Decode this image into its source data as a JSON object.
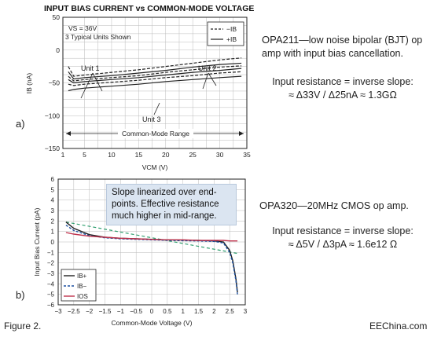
{
  "figure_label": "Figure 2.",
  "watermark": "EEChina.com",
  "right_notes": {
    "top": {
      "part": "OPA211",
      "desc_a": "—low noise bipolar (BJT) op",
      "desc_b": "amp with input bias cancellation.",
      "formula_a": "Input resistance = inverse slope:",
      "formula_b": "≈ Δ33V / Δ25nA ≈ 1.3GΩ"
    },
    "bottom": {
      "part": "OPA320",
      "desc": "—20MHz CMOS op amp.",
      "formula_a": "Input resistance = inverse slope:",
      "formula_b": "≈ Δ5V / Δ3pA ≈ 1.6e12 Ω"
    }
  },
  "callout": {
    "line1": "Slope linearized over end-",
    "line2": "points. Effective resistance",
    "line3": "much higher in mid-range."
  },
  "panel_labels": {
    "a": "a)",
    "b": "b)"
  },
  "colors": {
    "ib_plus": "#222222",
    "ib_minus": "#1a4fa0",
    "ios": "#c0334d",
    "slope_line": "#2e9e6e",
    "callout_bg": "#dbe5f1"
  },
  "chart_data": [
    {
      "type": "line",
      "title": "INPUT BIAS CURRENT vs COMMON-MODE VOLTAGE",
      "xlabel": "VCM (V)",
      "ylabel": "IB (nA)",
      "xlim": [
        1,
        35
      ],
      "ylim": [
        -150,
        50
      ],
      "x_ticks": [
        1,
        5,
        10,
        15,
        20,
        25,
        30,
        35
      ],
      "y_ticks": [
        50,
        0,
        -50,
        -100,
        -150
      ],
      "y_tick_labels": [
        "50",
        "0",
        "−50",
        "−100",
        "−150"
      ],
      "grid": true,
      "legend": {
        "position": "top-right",
        "entries": [
          "−IB",
          "+IB"
        ]
      },
      "annotations": {
        "conditions_a": "VS = 36V",
        "conditions_b": "3 Typical Units Shown",
        "unit1": "Unit 1",
        "unit2": "Unit 2",
        "unit3": "Unit 3",
        "range": "Common-Mode Range"
      },
      "series": [
        {
          "style": "dashed",
          "x": [
            2,
            3,
            5,
            10,
            15,
            20,
            25,
            30,
            34
          ],
          "y": [
            -25,
            -40,
            -38,
            -34,
            -30,
            -25,
            -20,
            -15,
            -12
          ]
        },
        {
          "style": "solid",
          "x": [
            2,
            3,
            5,
            10,
            15,
            20,
            25,
            30,
            34
          ],
          "y": [
            -33,
            -44,
            -42,
            -39,
            -35,
            -31,
            -26,
            -22,
            -20
          ]
        },
        {
          "style": "dashed",
          "x": [
            2,
            3,
            5,
            10,
            15,
            20,
            25,
            30,
            34
          ],
          "y": [
            -40,
            -47,
            -45,
            -42,
            -39,
            -34,
            -30,
            -26,
            -24
          ]
        },
        {
          "style": "solid",
          "x": [
            2,
            3,
            5,
            10,
            15,
            20,
            25,
            30,
            34
          ],
          "y": [
            -45,
            -50,
            -48,
            -45,
            -42,
            -38,
            -34,
            -31,
            -28
          ]
        },
        {
          "style": "dashed",
          "x": [
            2,
            3,
            5,
            10,
            15,
            20,
            25,
            30,
            34
          ],
          "y": [
            -52,
            -54,
            -52,
            -49,
            -46,
            -42,
            -39,
            -35,
            -33
          ]
        },
        {
          "style": "solid",
          "x": [
            2,
            3,
            5,
            10,
            15,
            20,
            25,
            30,
            34
          ],
          "y": [
            -62,
            -60,
            -58,
            -55,
            -52,
            -48,
            -45,
            -42,
            -40
          ]
        }
      ]
    },
    {
      "type": "line",
      "xlabel": "Common-Mode Voltage (V)",
      "ylabel": "Input Bias Current (pA)",
      "xlim": [
        -3,
        3
      ],
      "ylim": [
        -6,
        6
      ],
      "x_ticks": [
        -3,
        -2.5,
        -2,
        -1.5,
        -1,
        -0.5,
        0,
        0.5,
        1,
        1.5,
        2,
        2.5,
        3
      ],
      "x_tick_labels": [
        "−3",
        "−2.5",
        "−2",
        "−1.5",
        "−1",
        "−0.5",
        "0",
        "0.5",
        "1",
        "1.5",
        "2",
        "2.5",
        "3"
      ],
      "y_ticks": [
        6,
        5,
        4,
        3,
        2,
        1,
        0,
        -1,
        -2,
        -3,
        -4,
        -5,
        -6
      ],
      "y_tick_labels": [
        "6",
        "5",
        "4",
        "3",
        "2",
        "1",
        "0",
        "−1",
        "−2",
        "−3",
        "−4",
        "−5",
        "−6"
      ],
      "grid": true,
      "legend": {
        "position": "bottom-left",
        "entries": [
          "IB+",
          "IB−",
          "IOS"
        ]
      },
      "series": [
        {
          "name": "IB+",
          "x": [
            -2.75,
            -2.5,
            -2,
            -1.5,
            -1,
            -0.5,
            0,
            0.5,
            1,
            1.5,
            2,
            2.3,
            2.5,
            2.6,
            2.7,
            2.75
          ],
          "y": [
            1.9,
            1.3,
            0.7,
            0.45,
            0.35,
            0.3,
            0.25,
            0.2,
            0.18,
            0.15,
            0.1,
            0.0,
            -0.8,
            -1.8,
            -3.5,
            -4.8
          ]
        },
        {
          "name": "IB−",
          "x": [
            -2.75,
            -2.5,
            -2,
            -1.5,
            -1,
            -0.5,
            0,
            0.5,
            1,
            1.5,
            2,
            2.3,
            2.5,
            2.6,
            2.7,
            2.75
          ],
          "y": [
            1.6,
            1.1,
            0.6,
            0.4,
            0.3,
            0.25,
            0.2,
            0.15,
            0.12,
            0.1,
            0.05,
            -0.1,
            -1.0,
            -2.0,
            -3.7,
            -5.0
          ]
        },
        {
          "name": "IOS",
          "x": [
            -2.75,
            -2.5,
            -2,
            -1.5,
            -1,
            -0.5,
            0,
            0.5,
            1,
            1.5,
            2,
            2.3,
            2.5,
            2.6,
            2.75
          ],
          "y": [
            0.9,
            0.75,
            0.55,
            0.45,
            0.35,
            0.3,
            0.25,
            0.2,
            0.2,
            0.15,
            0.15,
            0.15,
            0.1,
            0.1,
            0.1
          ]
        }
      ],
      "slope_line": {
        "x": [
          -2.75,
          2.75
        ],
        "y": [
          1.9,
          -1.1
        ]
      }
    }
  ]
}
